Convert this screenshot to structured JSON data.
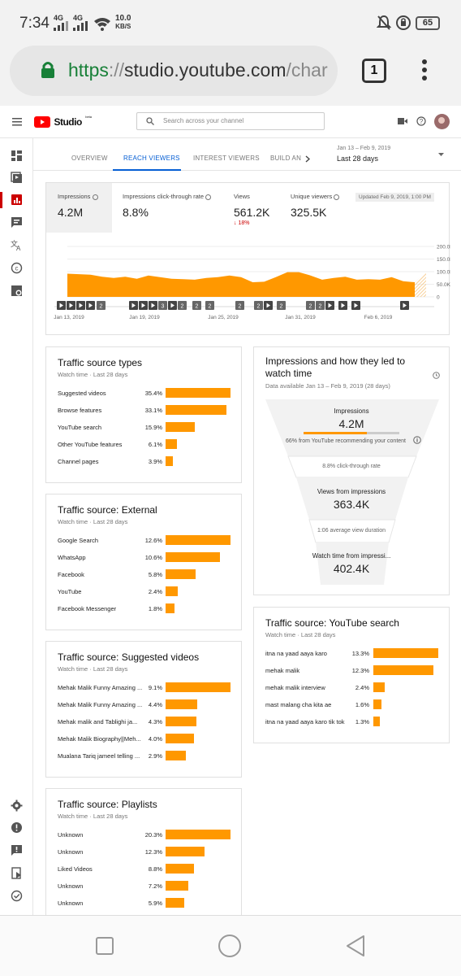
{
  "status_bar": {
    "time": "7:34",
    "net1": "4G",
    "net2": "4G",
    "speed_value": "10.0",
    "speed_unit": "KB/S",
    "battery": "65"
  },
  "browser": {
    "url_scheme": "https",
    "url_sep": "://",
    "url_host": "studio.youtube.com",
    "url_path": "/char",
    "tab_count": "1"
  },
  "app": {
    "logo_text": "Studio",
    "logo_badge": "beta",
    "search_placeholder": "Search across your channel"
  },
  "tabs": [
    {
      "label": "OVERVIEW"
    },
    {
      "label": "REACH VIEWERS"
    },
    {
      "label": "INTEREST VIEWERS"
    },
    {
      "label": "BUILD AN"
    }
  ],
  "date_range": {
    "range": "Jan 13 – Feb 9, 2019",
    "label": "Last 28 days"
  },
  "metrics": [
    {
      "label": "Impressions",
      "value": "4.2M"
    },
    {
      "label": "Impressions click-through rate",
      "value": "8.8%"
    },
    {
      "label": "Views",
      "value": "561.2K",
      "change": "18%"
    },
    {
      "label": "Unique viewers",
      "value": "325.5K"
    }
  ],
  "updated_badge": "Updated Feb 9, 2019, 1:00 PM",
  "chart_data": {
    "type": "area",
    "x_labels": [
      "Jan 13, 2019",
      "Jan 19, 2019",
      "Jan 25, 2019",
      "Jan 31, 2019",
      "Feb 6, 2019"
    ],
    "y_ticks": [
      "200.0K",
      "150.0K",
      "100.0K",
      "50.0K",
      "0"
    ],
    "ylim": [
      0,
      200000
    ],
    "values": [
      92000,
      90000,
      88000,
      80000,
      75000,
      80000,
      72000,
      85000,
      78000,
      72000,
      70000,
      68000,
      75000,
      78000,
      85000,
      78000,
      58000,
      60000,
      78000,
      98000,
      98000,
      85000,
      68000,
      75000,
      80000,
      68000,
      70000,
      68000,
      78000,
      62000,
      58000
    ],
    "forecast_last": 100000,
    "color": "#ff9800",
    "markers": [
      "▶",
      "▶",
      "▶",
      "▶",
      "2",
      "▶",
      "▶",
      "▶",
      "3",
      "▶",
      "2",
      "2",
      "2",
      "2",
      "2",
      "▶",
      "2",
      "2",
      "2",
      "▶",
      "▶",
      "▶",
      "▶"
    ]
  },
  "traffic_source_types": {
    "title": "Traffic source types",
    "subtitle": "Watch time · Last 28 days",
    "rows": [
      {
        "label": "Suggested videos",
        "pct": "35.4%",
        "value": 35.4
      },
      {
        "label": "Browse features",
        "pct": "33.1%",
        "value": 33.1
      },
      {
        "label": "YouTube search",
        "pct": "15.9%",
        "value": 15.9
      },
      {
        "label": "Other YouTube features",
        "pct": "6.1%",
        "value": 6.1
      },
      {
        "label": "Channel pages",
        "pct": "3.9%",
        "value": 3.9
      }
    ]
  },
  "traffic_external": {
    "title": "Traffic source: External",
    "subtitle": "Watch time · Last 28 days",
    "rows": [
      {
        "label": "Google Search",
        "pct": "12.6%",
        "value": 12.6
      },
      {
        "label": "WhatsApp",
        "pct": "10.6%",
        "value": 10.6
      },
      {
        "label": "Facebook",
        "pct": "5.8%",
        "value": 5.8
      },
      {
        "label": "YouTube",
        "pct": "2.4%",
        "value": 2.4
      },
      {
        "label": "Facebook Messenger",
        "pct": "1.8%",
        "value": 1.8
      }
    ]
  },
  "traffic_suggested": {
    "title": "Traffic source: Suggested videos",
    "subtitle": "Watch time · Last 28 days",
    "rows": [
      {
        "label": "Mehak Malik Funny Amazing ...",
        "pct": "9.1%",
        "value": 9.1
      },
      {
        "label": "Mehak Malik Funny Amazing ...",
        "pct": "4.4%",
        "value": 4.4
      },
      {
        "label": "Mehak malik and Tablighi ja...",
        "pct": "4.3%",
        "value": 4.3
      },
      {
        "label": "Mehak Malik Biography||Meh...",
        "pct": "4.0%",
        "value": 4.0
      },
      {
        "label": "Mualana Tariq jameel telling ...",
        "pct": "2.9%",
        "value": 2.9
      }
    ]
  },
  "traffic_playlists": {
    "title": "Traffic source: Playlists",
    "subtitle": "Watch time · Last 28 days",
    "rows": [
      {
        "label": "Unknown",
        "pct": "20.3%",
        "value": 20.3
      },
      {
        "label": "Unknown",
        "pct": "12.3%",
        "value": 12.3
      },
      {
        "label": "Liked Videos",
        "pct": "8.8%",
        "value": 8.8
      },
      {
        "label": "Unknown",
        "pct": "7.2%",
        "value": 7.2
      },
      {
        "label": "Unknown",
        "pct": "5.9%",
        "value": 5.9
      }
    ]
  },
  "funnel": {
    "title": "Impressions and how they led to watch time",
    "subtitle": "Data available Jan 13 – Feb 9, 2019 (28 days)",
    "impressions_label": "Impressions",
    "impressions_value": "4.2M",
    "recommend_text": "66% from YouTube recommending your content",
    "recommend_fraction": 0.66,
    "ctr_text": "8.8% click-through rate",
    "views_label": "Views from impressions",
    "views_value": "363.4K",
    "avd_text": "1:06 average view duration",
    "watch_label": "Watch time from impressi...",
    "watch_value": "402.4K"
  },
  "traffic_yt_search": {
    "title": "Traffic source: YouTube search",
    "subtitle": "Watch time · Last 28 days",
    "rows": [
      {
        "label": "itna na yaad aaya karo",
        "pct": "13.3%",
        "value": 13.3
      },
      {
        "label": "mehak malik",
        "pct": "12.3%",
        "value": 12.3
      },
      {
        "label": "mehak malik interview",
        "pct": "2.4%",
        "value": 2.4
      },
      {
        "label": "mast malang cha kita ae",
        "pct": "1.6%",
        "value": 1.6
      },
      {
        "label": "itna na yaad aaya karo tik tok",
        "pct": "1.3%",
        "value": 1.3
      }
    ]
  }
}
